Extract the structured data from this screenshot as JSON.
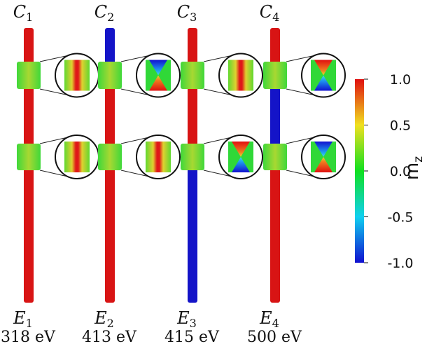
{
  "columns": [
    {
      "name": {
        "letter": "C",
        "index": "1"
      },
      "state": {
        "letter": "E",
        "index": "1"
      },
      "energy": "318 eV"
    },
    {
      "name": {
        "letter": "C",
        "index": "2"
      },
      "state": {
        "letter": "E",
        "index": "2"
      },
      "energy": "413 eV"
    },
    {
      "name": {
        "letter": "C",
        "index": "3"
      },
      "state": {
        "letter": "E",
        "index": "3"
      },
      "energy": "415 eV"
    },
    {
      "name": {
        "letter": "C",
        "index": "4"
      },
      "state": {
        "letter": "E",
        "index": "4"
      },
      "energy": "500 eV"
    }
  ],
  "colorbar": {
    "label": "m",
    "label_sub": "z",
    "ticks": [
      {
        "value": 1,
        "label": "1.0"
      },
      {
        "value": 0.5,
        "label": "0.5"
      },
      {
        "value": 0,
        "label": "0.0"
      },
      {
        "value": -0.5,
        "label": "-0.5"
      },
      {
        "value": -1,
        "label": "-1.0"
      }
    ],
    "range": [
      -1,
      1
    ]
  }
}
